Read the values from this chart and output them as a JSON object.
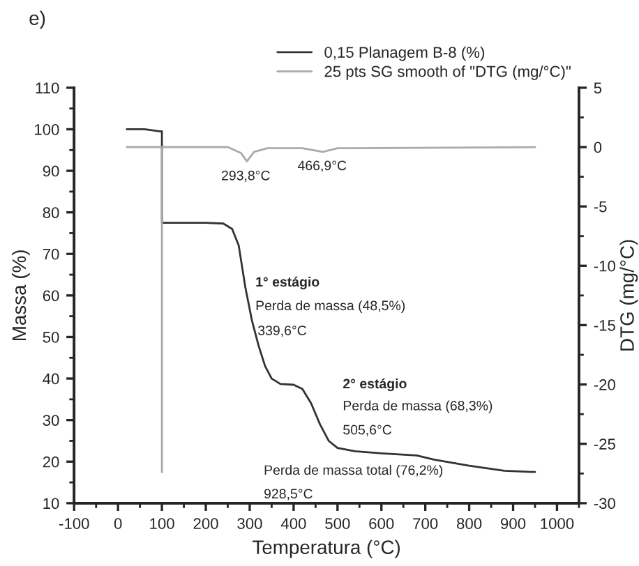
{
  "chart_data": {
    "type": "line",
    "xlabel": "Temperatura (°C)",
    "ylabel": "Massa (%)",
    "y2label": "DTG (mg/°C)",
    "series": [
      {
        "name": "0,15 Planagem B-8 (%)",
        "color": "#333333",
        "x": [
          20,
          60,
          95,
          100,
          100,
          200,
          240,
          260,
          275,
          290,
          305,
          320,
          335,
          350,
          370,
          400,
          420,
          440,
          460,
          480,
          500,
          540,
          600,
          680,
          720,
          800,
          880,
          950
        ],
        "values": [
          100,
          100,
          99.5,
          99.5,
          77.5,
          77.5,
          77.3,
          76,
          72,
          62,
          54,
          48,
          43,
          40,
          38.7,
          38.5,
          37.5,
          34,
          29,
          25,
          23.3,
          22.5,
          22,
          21.5,
          20.5,
          19,
          17.8,
          17.5
        ]
      },
      {
        "name": "25 pts SG smooth of \"DTG (mg/°C)\"",
        "color": "#aaaaaa",
        "axis": "y2",
        "x": [
          20,
          100,
          100,
          100,
          250,
          280,
          293.8,
          310,
          340,
          420,
          466.9,
          500,
          950
        ],
        "values": [
          0,
          0,
          -27.4,
          0,
          0,
          -0.5,
          -1.2,
          -0.4,
          -0.1,
          -0.1,
          -0.4,
          -0.1,
          0
        ]
      }
    ],
    "xlim": [
      -100,
      1050
    ],
    "xticks": [
      -100,
      0,
      100,
      200,
      300,
      400,
      500,
      600,
      700,
      800,
      900,
      1000
    ],
    "ylim": [
      10,
      110
    ],
    "yticks": [
      10,
      20,
      30,
      40,
      50,
      60,
      70,
      80,
      90,
      100,
      110
    ],
    "y2lim": [
      -30,
      5
    ],
    "y2ticks": [
      -30,
      -25,
      -20,
      -15,
      -10,
      -5,
      0,
      5
    ],
    "annotations": [
      "e)",
      "293,8°C",
      "466,9°C",
      "1° estágio",
      "Perda de massa (48,5%)",
      "339,6°C",
      "2° estágio",
      "Perda de massa (68,3%)",
      "505,6°C",
      "Perda de massa total (76,2%)",
      "928,5°C"
    ],
    "legend": "top right",
    "grid": false,
    "marker": "none",
    "line_style": "solid"
  }
}
